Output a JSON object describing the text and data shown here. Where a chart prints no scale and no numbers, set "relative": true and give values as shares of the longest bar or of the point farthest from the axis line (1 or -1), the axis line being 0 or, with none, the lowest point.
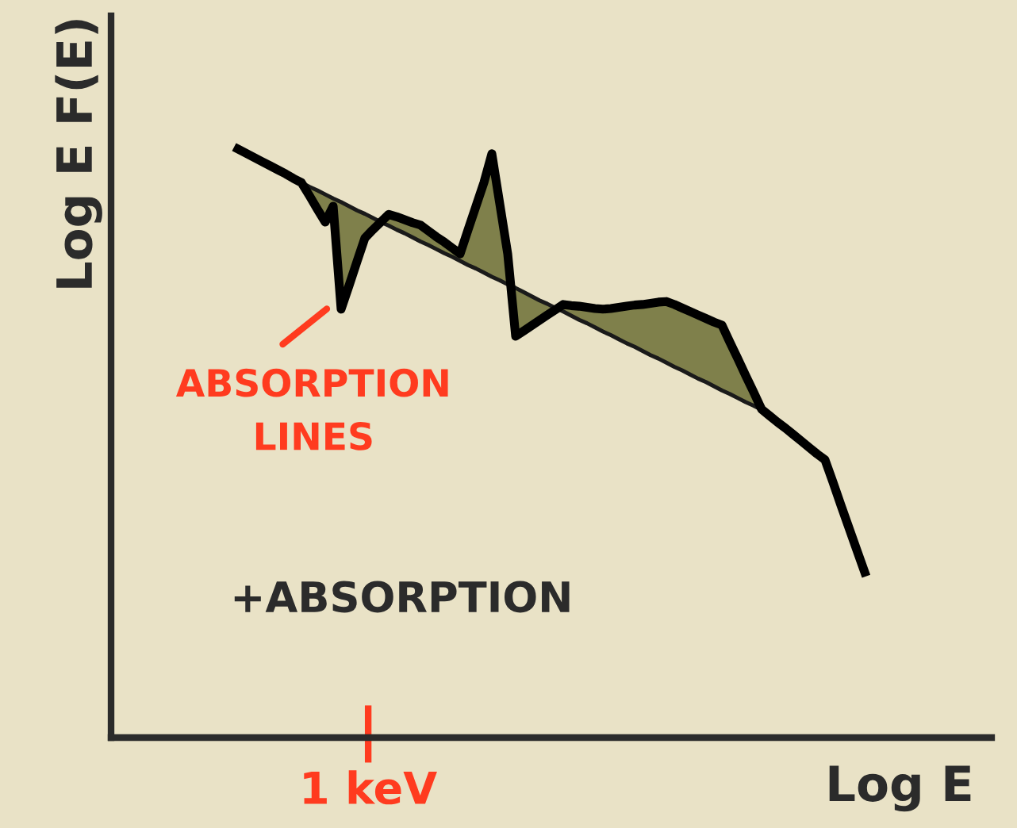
{
  "chart_data": {
    "type": "line",
    "relative": true,
    "xlabel": "Log E",
    "ylabel": "Log E F(E)",
    "categories": [
      null,
      null,
      null,
      null,
      null,
      null,
      null,
      null,
      null,
      null,
      null,
      null,
      null,
      null,
      null,
      null,
      null,
      null,
      null,
      null,
      null,
      null,
      null,
      null,
      null,
      null,
      null,
      null,
      null,
      null,
      null,
      null,
      null,
      null,
      null,
      null,
      null,
      null,
      null,
      null,
      null,
      null,
      null,
      null,
      null,
      null,
      null,
      null,
      null,
      null,
      null,
      null,
      null,
      null,
      null,
      null,
      null,
      null,
      null,
      null,
      null,
      null,
      null,
      null,
      null,
      null,
      null,
      null,
      null,
      null,
      null,
      null,
      null,
      null,
      null,
      null,
      null,
      null,
      null,
      null
    ],
    "series": [
      {
        "color": "#000000",
        "values": [
          1.0,
          0.993,
          0.986,
          0.979,
          0.972,
          0.965,
          0.958,
          0.95,
          0.943,
          0.921,
          0.898,
          0.876,
          0.903,
          0.728,
          0.768,
          0.809,
          0.849,
          0.863,
          0.876,
          0.889,
          0.885,
          0.88,
          0.875,
          0.871,
          0.861,
          0.851,
          0.842,
          0.832,
          0.822,
          0.863,
          0.903,
          0.943,
          0.992,
          0.907,
          0.822,
          0.682,
          0.691,
          0.7,
          0.709,
          0.718,
          0.727,
          0.736,
          0.734,
          0.733,
          0.731,
          0.729,
          0.728,
          0.729,
          0.731,
          0.733,
          0.735,
          0.736,
          0.738,
          0.74,
          0.741,
          0.736,
          0.73,
          0.724,
          0.718,
          0.712,
          0.706,
          0.701,
          0.672,
          0.644,
          0.615,
          0.587,
          0.558,
          0.547,
          0.536,
          0.526,
          0.515,
          0.504,
          0.493,
          0.482,
          0.472,
          0.434,
          0.395,
          0.357,
          0.319,
          0.281
        ]
      },
      {
        "color": "#1a1a1a",
        "values": [
          null,
          null,
          null,
          null,
          null,
          null,
          null,
          null,
          0.943,
          0.936,
          0.93,
          0.923,
          0.916,
          0.91,
          0.903,
          0.896,
          0.89,
          0.883,
          0.876,
          0.87,
          0.863,
          0.857,
          0.85,
          0.843,
          0.837,
          0.83,
          0.823,
          0.817,
          0.81,
          0.803,
          0.797,
          0.79,
          0.783,
          0.777,
          0.77,
          0.764,
          0.757,
          0.75,
          0.743,
          0.737,
          0.73,
          0.724,
          0.717,
          0.71,
          0.704,
          0.697,
          0.69,
          0.684,
          0.677,
          0.67,
          0.664,
          0.657,
          0.65,
          0.644,
          0.637,
          0.63,
          0.624,
          0.617,
          0.61,
          0.604,
          0.597,
          0.59,
          0.584,
          0.577,
          0.57,
          0.564,
          0.557,
          null,
          null,
          null,
          null,
          null,
          null,
          null,
          null,
          null,
          null,
          null,
          null,
          null
        ],
        "lower": [
          null,
          null,
          null,
          null,
          null,
          null,
          null,
          null,
          0.943,
          0.921,
          0.898,
          0.876,
          0.903,
          0.728,
          0.768,
          0.809,
          0.849,
          0.863,
          0.876,
          0.87,
          0.863,
          0.857,
          0.85,
          0.843,
          0.837,
          0.83,
          0.823,
          0.817,
          0.81,
          0.803,
          0.797,
          0.79,
          0.783,
          0.777,
          0.77,
          0.682,
          0.691,
          0.7,
          0.709,
          0.718,
          0.727,
          0.724,
          0.717,
          0.71,
          0.704,
          0.697,
          0.69,
          0.684,
          0.677,
          0.67,
          0.664,
          0.657,
          0.65,
          0.644,
          0.637,
          0.63,
          0.624,
          0.617,
          0.61,
          0.604,
          0.597,
          0.59,
          0.584,
          0.577,
          0.57,
          0.564,
          0.557,
          null,
          null,
          null,
          null,
          null,
          null,
          null,
          null,
          null,
          null,
          null,
          null,
          null
        ],
        "upper": [
          null,
          null,
          null,
          null,
          null,
          null,
          null,
          null,
          0.943,
          0.936,
          0.93,
          0.923,
          0.916,
          0.91,
          0.903,
          0.896,
          0.89,
          0.883,
          0.876,
          0.889,
          0.885,
          0.88,
          0.875,
          0.871,
          0.861,
          0.851,
          0.842,
          0.832,
          0.822,
          0.863,
          0.903,
          0.943,
          0.992,
          0.907,
          0.822,
          0.764,
          0.757,
          0.75,
          0.743,
          0.737,
          0.73,
          0.736,
          0.734,
          0.733,
          0.731,
          0.729,
          0.728,
          0.729,
          0.731,
          0.733,
          0.735,
          0.736,
          0.738,
          0.74,
          0.741,
          0.736,
          0.73,
          0.724,
          0.718,
          0.712,
          0.706,
          0.701,
          0.672,
          0.644,
          0.615,
          0.587,
          0.558,
          null,
          null,
          null,
          null,
          null,
          null,
          null,
          null,
          null,
          null,
          null,
          null,
          null
        ]
      }
    ],
    "annotations": [
      "ABSORPTION\nLINES",
      "+ABSORPTION",
      "1 keV"
    ],
    "marker": "none",
    "line_style": "solid"
  }
}
